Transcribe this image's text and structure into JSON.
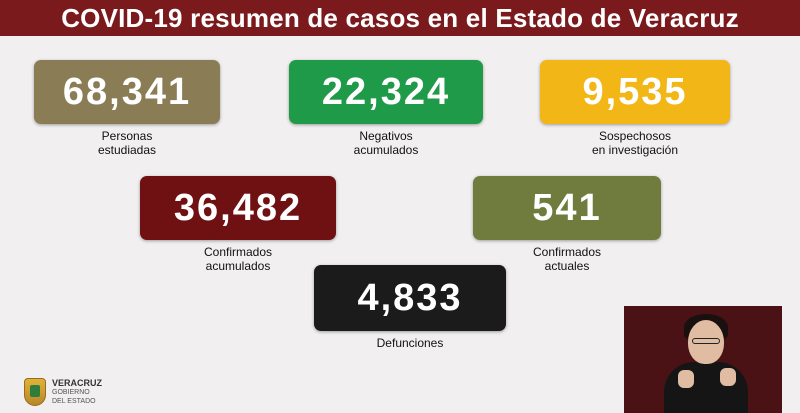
{
  "header": {
    "title": "COVID-19 resumen de casos en el Estado de Veracruz"
  },
  "stats": {
    "personas": {
      "value": "68,341",
      "label_line1": "Personas",
      "label_line2": "estudiadas",
      "color": "#8a7c55"
    },
    "negativos": {
      "value": "22,324",
      "label_line1": "Negativos",
      "label_line2": "acumulados",
      "color": "#1f9a48"
    },
    "sospechosos": {
      "value": "9,535",
      "label_line1": "Sospechosos",
      "label_line2": "en investigación",
      "color": "#f2b616"
    },
    "confirmados": {
      "value": "36,482",
      "label_line1": "Confirmados",
      "label_line2": "acumulados",
      "color": "#6f1012"
    },
    "actuales": {
      "value": "541",
      "label_line1": "Confirmados",
      "label_line2": "actuales",
      "color": "#6f7c3d"
    },
    "defunciones": {
      "value": "4,833",
      "label_line1": "Defunciones",
      "color": "#1b1b1b"
    }
  },
  "footer": {
    "logo_line1": "VERACRUZ",
    "logo_line2": "GOBIERNO",
    "logo_line3": "DEL ESTADO",
    "logo_icon": "coat-of-arms-icon"
  },
  "accent_color": "#7a1a1d"
}
